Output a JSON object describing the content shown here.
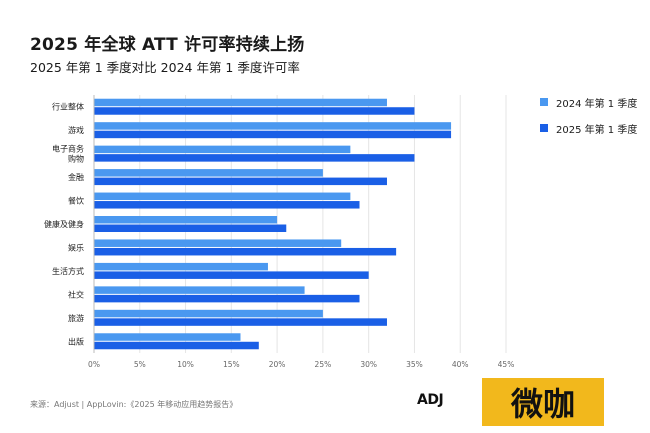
{
  "header": {
    "title": "2025 年全球 ATT 许可率持续上扬",
    "subtitle": "2025 年第 1 季度对比 2024 年第 1 季度许可率"
  },
  "footer": {
    "source": "来源：Adjust | AppLovin:《2025 年移动应用趋势报告》",
    "logo_text": "ADJ",
    "brand_text": "微咖"
  },
  "colors": {
    "series_2024": "#4a98f0",
    "series_2025": "#1a5fe6",
    "grid": "#e5e5e5",
    "axis": "#666666"
  },
  "chart_data": {
    "type": "bar",
    "orientation": "horizontal",
    "categories": [
      "行业整体",
      "游戏",
      "电子商务购物",
      "金融",
      "餐饮",
      "健康及健身",
      "娱乐",
      "生活方式",
      "社交",
      "旅游",
      "出版"
    ],
    "category_lines": [
      [
        "行业整体"
      ],
      [
        "游戏"
      ],
      [
        "电子商务",
        "购物"
      ],
      [
        "金融"
      ],
      [
        "餐饮"
      ],
      [
        "健康及健身"
      ],
      [
        "娱乐"
      ],
      [
        "生活方式"
      ],
      [
        "社交"
      ],
      [
        "旅游"
      ],
      [
        "出版"
      ]
    ],
    "series": [
      {
        "name": "2024 年第 1 季度",
        "values": [
          32,
          39,
          28,
          25,
          28,
          20,
          27,
          19,
          23,
          25,
          16
        ]
      },
      {
        "name": "2025 年第 1 季度",
        "values": [
          35,
          39,
          35,
          32,
          29,
          21,
          33,
          30,
          29,
          32,
          18
        ]
      }
    ],
    "xlim": [
      0,
      45
    ],
    "xticks": [
      0,
      5,
      10,
      15,
      20,
      25,
      30,
      35,
      40,
      45
    ],
    "tick_suffix": "%",
    "grid": true,
    "legend_position": "right"
  }
}
